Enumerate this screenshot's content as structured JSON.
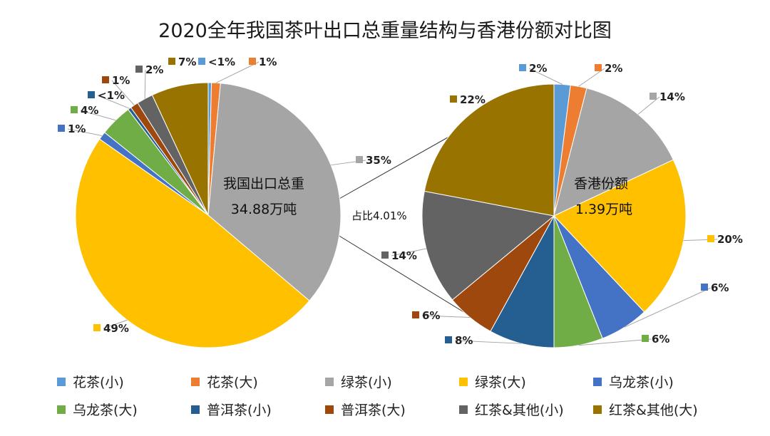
{
  "chart_data": {
    "type": "pie",
    "title": "2020全年我国茶叶出口总重量结构与香港份额对比图",
    "categories": [
      "花茶(小)",
      "花茶(大)",
      "绿茶(小)",
      "绿茶(大)",
      "乌龙茶(小)",
      "乌龙茶(大)",
      "普洱茶(小)",
      "普洱茶(大)",
      "红茶&其他(小)",
      "红茶&其他(大)"
    ],
    "colors": [
      "#5B9BD5",
      "#ED7D31",
      "#A5A5A5",
      "#FFC000",
      "#4472C4",
      "#70AD47",
      "#255E91",
      "#9E480E",
      "#636363",
      "#997300"
    ],
    "legend_position": "bottom",
    "pies": [
      {
        "name": "我国出口总重",
        "center_label": [
          "我国出口总重",
          "34.88万吨"
        ],
        "values": [
          0.4,
          1.1,
          35,
          49,
          1,
          4,
          0.4,
          1,
          2,
          7
        ],
        "labels": [
          "<1%",
          "1%",
          "35%",
          "49%",
          "1%",
          "4%",
          "<1%",
          "1%",
          "2%",
          "7%"
        ]
      },
      {
        "name": "香港份额",
        "center_label": [
          "香港份额",
          "1.39万吨"
        ],
        "values": [
          2,
          2,
          14,
          20,
          6,
          6,
          8,
          6,
          14,
          22
        ],
        "labels": [
          "2%",
          "2%",
          "14%",
          "20%",
          "6%",
          "6%",
          "8%",
          "6%",
          "14%",
          "22%"
        ]
      }
    ],
    "annotation": "占比4.01%"
  }
}
